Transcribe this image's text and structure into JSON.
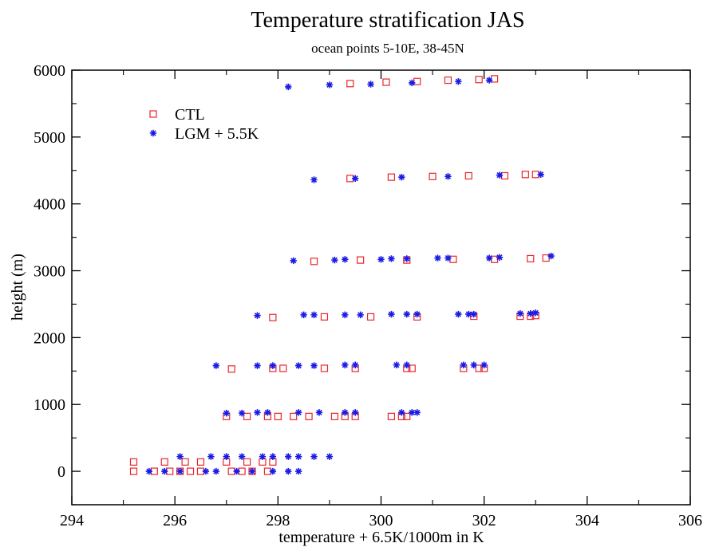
{
  "chart_data": {
    "type": "scatter",
    "title": "Temperature stratification JAS",
    "subtitle": "ocean points 5-10E, 38-45N",
    "xlabel": "temperature + 6.5K/1000m in K",
    "ylabel": "height (m)",
    "xlim": [
      294,
      306
    ],
    "ylim": [
      -500,
      6000
    ],
    "xticks": [
      "294",
      "296",
      "298",
      "300",
      "302",
      "304",
      "306"
    ],
    "yticks": [
      "0",
      "1000",
      "2000",
      "3000",
      "4000",
      "5000",
      "6000"
    ],
    "legend_placement": "top-left",
    "series": [
      {
        "name": "CTL",
        "marker": "square",
        "color": "#e8262b",
        "points": [
          [
            295.2,
            0
          ],
          [
            295.6,
            0
          ],
          [
            295.9,
            0
          ],
          [
            296.1,
            0
          ],
          [
            296.3,
            0
          ],
          [
            296.5,
            0
          ],
          [
            297.1,
            0
          ],
          [
            297.3,
            0
          ],
          [
            297.5,
            0
          ],
          [
            297.8,
            0
          ],
          [
            295.2,
            140
          ],
          [
            295.8,
            140
          ],
          [
            296.2,
            140
          ],
          [
            296.5,
            140
          ],
          [
            297.0,
            140
          ],
          [
            297.4,
            140
          ],
          [
            297.7,
            140
          ],
          [
            297.9,
            140
          ],
          [
            297.0,
            820
          ],
          [
            297.4,
            820
          ],
          [
            297.8,
            820
          ],
          [
            298.0,
            820
          ],
          [
            298.3,
            820
          ],
          [
            298.6,
            820
          ],
          [
            299.1,
            820
          ],
          [
            299.3,
            820
          ],
          [
            299.5,
            820
          ],
          [
            300.2,
            820
          ],
          [
            300.4,
            820
          ],
          [
            300.5,
            820
          ],
          [
            297.1,
            1530
          ],
          [
            297.9,
            1540
          ],
          [
            298.1,
            1540
          ],
          [
            298.9,
            1540
          ],
          [
            299.5,
            1540
          ],
          [
            300.5,
            1540
          ],
          [
            300.6,
            1540
          ],
          [
            301.6,
            1540
          ],
          [
            301.9,
            1540
          ],
          [
            302.0,
            1540
          ],
          [
            297.9,
            2300
          ],
          [
            298.9,
            2310
          ],
          [
            299.8,
            2310
          ],
          [
            300.7,
            2310
          ],
          [
            301.8,
            2320
          ],
          [
            302.7,
            2320
          ],
          [
            302.9,
            2320
          ],
          [
            303.0,
            2330
          ],
          [
            298.7,
            3140
          ],
          [
            299.6,
            3160
          ],
          [
            300.5,
            3160
          ],
          [
            301.4,
            3170
          ],
          [
            302.2,
            3170
          ],
          [
            302.9,
            3180
          ],
          [
            303.2,
            3190
          ],
          [
            299.4,
            4380
          ],
          [
            300.2,
            4400
          ],
          [
            301.0,
            4410
          ],
          [
            301.7,
            4420
          ],
          [
            302.4,
            4420
          ],
          [
            302.8,
            4440
          ],
          [
            303.0,
            4440
          ],
          [
            299.4,
            5800
          ],
          [
            300.1,
            5820
          ],
          [
            300.7,
            5830
          ],
          [
            301.3,
            5850
          ],
          [
            301.9,
            5860
          ],
          [
            302.2,
            5870
          ]
        ]
      },
      {
        "name": "LGM + 5.5K",
        "marker": "asterisk",
        "color": "#1a1ae6",
        "points": [
          [
            295.5,
            0
          ],
          [
            295.8,
            0
          ],
          [
            296.1,
            0
          ],
          [
            296.6,
            0
          ],
          [
            296.8,
            0
          ],
          [
            297.2,
            0
          ],
          [
            297.5,
            0
          ],
          [
            297.9,
            0
          ],
          [
            298.2,
            0
          ],
          [
            298.4,
            0
          ],
          [
            296.1,
            220
          ],
          [
            296.7,
            220
          ],
          [
            297.0,
            220
          ],
          [
            297.3,
            220
          ],
          [
            297.7,
            220
          ],
          [
            297.9,
            220
          ],
          [
            298.2,
            220
          ],
          [
            298.4,
            220
          ],
          [
            298.7,
            220
          ],
          [
            299.0,
            220
          ],
          [
            297.0,
            870
          ],
          [
            297.3,
            870
          ],
          [
            297.6,
            880
          ],
          [
            297.8,
            880
          ],
          [
            298.4,
            880
          ],
          [
            298.8,
            880
          ],
          [
            299.3,
            880
          ],
          [
            299.5,
            880
          ],
          [
            300.4,
            880
          ],
          [
            300.6,
            880
          ],
          [
            300.7,
            880
          ],
          [
            296.8,
            1580
          ],
          [
            297.6,
            1580
          ],
          [
            297.9,
            1580
          ],
          [
            298.4,
            1580
          ],
          [
            298.7,
            1580
          ],
          [
            299.3,
            1590
          ],
          [
            299.5,
            1590
          ],
          [
            300.3,
            1590
          ],
          [
            300.5,
            1590
          ],
          [
            301.6,
            1590
          ],
          [
            301.8,
            1590
          ],
          [
            302.0,
            1590
          ],
          [
            297.6,
            2330
          ],
          [
            298.5,
            2340
          ],
          [
            298.7,
            2340
          ],
          [
            299.3,
            2340
          ],
          [
            299.6,
            2340
          ],
          [
            300.2,
            2350
          ],
          [
            300.5,
            2350
          ],
          [
            300.7,
            2350
          ],
          [
            301.5,
            2350
          ],
          [
            301.7,
            2350
          ],
          [
            301.8,
            2350
          ],
          [
            302.7,
            2360
          ],
          [
            302.9,
            2360
          ],
          [
            303.0,
            2370
          ],
          [
            298.3,
            3150
          ],
          [
            299.1,
            3160
          ],
          [
            299.3,
            3170
          ],
          [
            300.0,
            3170
          ],
          [
            300.2,
            3180
          ],
          [
            300.5,
            3180
          ],
          [
            301.1,
            3190
          ],
          [
            301.3,
            3190
          ],
          [
            302.1,
            3190
          ],
          [
            302.3,
            3200
          ],
          [
            303.3,
            3220
          ],
          [
            298.7,
            4360
          ],
          [
            299.5,
            4380
          ],
          [
            300.4,
            4400
          ],
          [
            301.3,
            4410
          ],
          [
            302.3,
            4430
          ],
          [
            303.1,
            4440
          ],
          [
            298.2,
            5750
          ],
          [
            299.0,
            5780
          ],
          [
            299.8,
            5790
          ],
          [
            300.6,
            5810
          ],
          [
            301.5,
            5830
          ],
          [
            302.1,
            5850
          ]
        ]
      }
    ]
  }
}
